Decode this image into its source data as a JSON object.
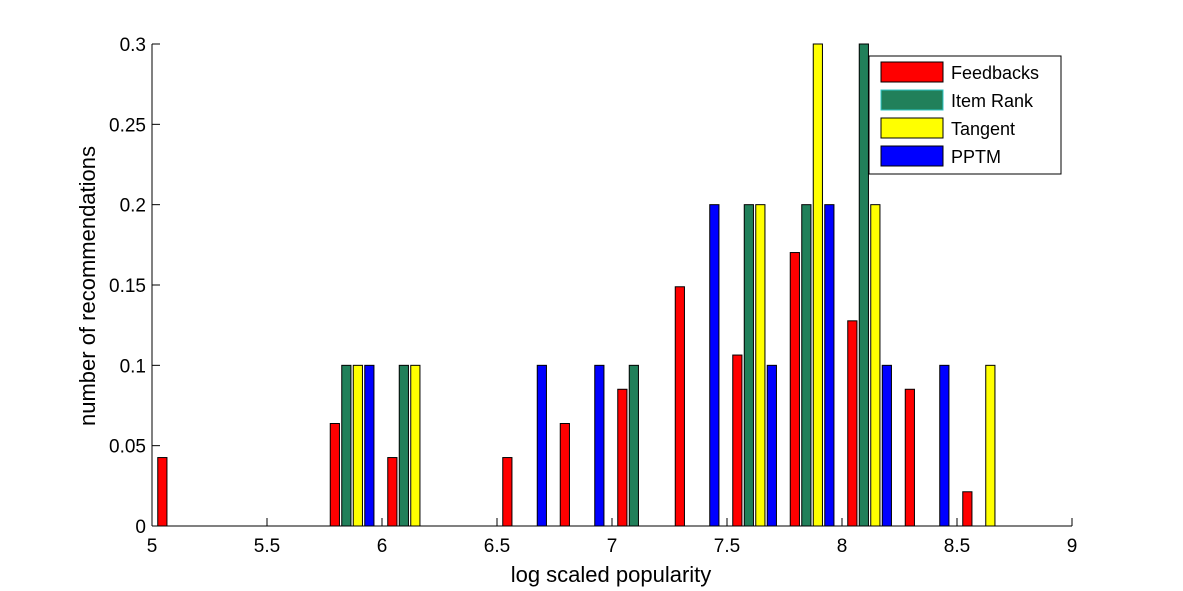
{
  "chart_data": {
    "type": "bar",
    "xlabel": "log scaled popularity",
    "ylabel": "number of recommendations",
    "xlim": [
      5,
      9
    ],
    "ylim": [
      0,
      0.3
    ],
    "xticks": [
      "5",
      "5.5",
      "6",
      "6.5",
      "7",
      "7.5",
      "8",
      "8.5",
      "9"
    ],
    "yticks": [
      "0",
      "0.05",
      "0.1",
      "0.15",
      "0.2",
      "0.25",
      "0.3"
    ],
    "grid": false,
    "legend_position": "top-right",
    "bin_centers": [
      5.12,
      5.37,
      5.62,
      5.87,
      6.12,
      6.37,
      6.62,
      6.87,
      7.12,
      7.37,
      7.62,
      7.87,
      8.12,
      8.37,
      8.62,
      8.87
    ],
    "series": [
      {
        "name": "Feedbacks",
        "color": "#ff0000",
        "values": [
          0.0426,
          0,
          0,
          0.0638,
          0.0426,
          0,
          0.0426,
          0.0638,
          0.0851,
          0.1489,
          0.1064,
          0.1702,
          0.1277,
          0.0851,
          0.0213,
          0
        ]
      },
      {
        "name": "Item Rank",
        "color": "#21805a",
        "values": [
          0,
          0,
          0,
          0.1,
          0.1,
          0,
          0,
          0,
          0.1,
          0,
          0.2,
          0.2,
          0.3,
          0,
          0,
          0
        ]
      },
      {
        "name": "Tangent",
        "color": "#ffff00",
        "values": [
          0,
          0,
          0,
          0.1,
          0.1,
          0,
          0,
          0,
          0,
          0,
          0.2,
          0.3,
          0.2,
          0,
          0.1,
          0
        ]
      },
      {
        "name": "PPTM",
        "color": "#0000ff",
        "values": [
          0,
          0,
          0,
          0.1,
          0,
          0,
          0.1,
          0.1,
          0,
          0.2,
          0.1,
          0.2,
          0.1,
          0.1,
          0,
          0
        ]
      }
    ]
  }
}
